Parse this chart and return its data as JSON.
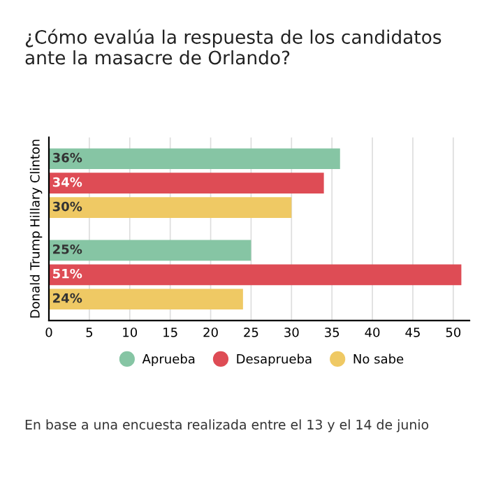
{
  "chart_data": {
    "type": "bar",
    "orientation": "horizontal",
    "title": "¿Cómo evalúa la respuesta de los candidatos ante la masacre de Orlando?",
    "categories": [
      "Hillary Clinton",
      "Donald Trump"
    ],
    "series": [
      {
        "name": "Aprueba",
        "color": "#86c5a4",
        "values": [
          36,
          25
        ],
        "value_labels": [
          "36%",
          "25%"
        ]
      },
      {
        "name": "Desaprueba",
        "color": "#de4c55",
        "values": [
          34,
          51
        ],
        "value_labels": [
          "34%",
          "51%"
        ]
      },
      {
        "name": "No sabe",
        "color": "#efc964",
        "values": [
          30,
          24
        ],
        "value_labels": [
          "30%",
          "24%"
        ]
      }
    ],
    "xlim": [
      0,
      52
    ],
    "xticks": [
      0,
      5,
      10,
      15,
      20,
      25,
      30,
      35,
      40,
      45,
      50
    ],
    "grid": "x",
    "legend": "bottom",
    "annotations": [
      "En base a una encuesta realizada entre el 13 y el 14 de junio"
    ]
  }
}
